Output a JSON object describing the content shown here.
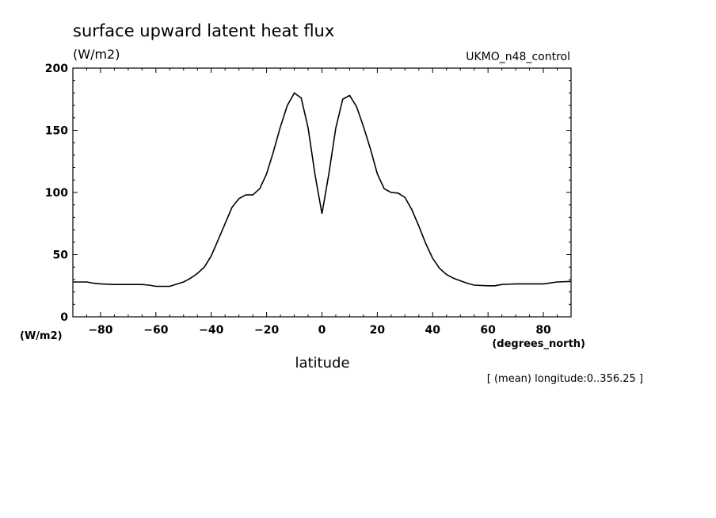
{
  "chart_data": {
    "type": "line",
    "title": "surface upward latent heat flux",
    "units_label": "(W/m2)",
    "run_label": "UKMO_n48_control",
    "xlabel": "latitude",
    "x_units": "(degrees_north)",
    "y_units": "(W/m2)",
    "footnote": "[ (mean) longitude:0..356.25 ]",
    "xlim": [
      -90,
      90
    ],
    "ylim": [
      0,
      200
    ],
    "x_ticks": [
      -80,
      -60,
      -40,
      -20,
      0,
      20,
      40,
      60,
      80
    ],
    "y_ticks": [
      0,
      50,
      100,
      150,
      200
    ],
    "grid": false,
    "line_color": "#000000",
    "series": [
      {
        "x": [
          -90,
          -85,
          -82.5,
          -80,
          -75,
          -70,
          -65,
          -62.5,
          -60,
          -57.5,
          -55,
          -50,
          -47.5,
          -45,
          -42.5,
          -40,
          -37.5,
          -35,
          -32.5,
          -30,
          -27.5,
          -25,
          -22.5,
          -20,
          -17.5,
          -15,
          -12.5,
          -10,
          -7.5,
          -5,
          -2.5,
          0,
          2.5,
          5,
          7.5,
          10,
          12.5,
          15,
          17.5,
          20,
          22.5,
          25,
          27.5,
          30,
          32.5,
          35,
          37.5,
          40,
          42.5,
          45,
          47.5,
          50,
          52.5,
          55,
          60,
          62.5,
          65,
          70,
          75,
          80,
          85,
          90
        ],
        "values": [
          28,
          28,
          27,
          26.5,
          26,
          26,
          26,
          25.5,
          24.5,
          24.5,
          24.5,
          28,
          31,
          35,
          40,
          49,
          62,
          75,
          88,
          95,
          98,
          98,
          103,
          115,
          133,
          153,
          170,
          180,
          176,
          152,
          114,
          83,
          115,
          152,
          175,
          178,
          169,
          153,
          135,
          115,
          103,
          100,
          99.5,
          96,
          86,
          73,
          59,
          47,
          39,
          34,
          31,
          29,
          27,
          25.5,
          25,
          25,
          26,
          26.5,
          26.5,
          26.5,
          28,
          28.5
        ]
      }
    ]
  }
}
